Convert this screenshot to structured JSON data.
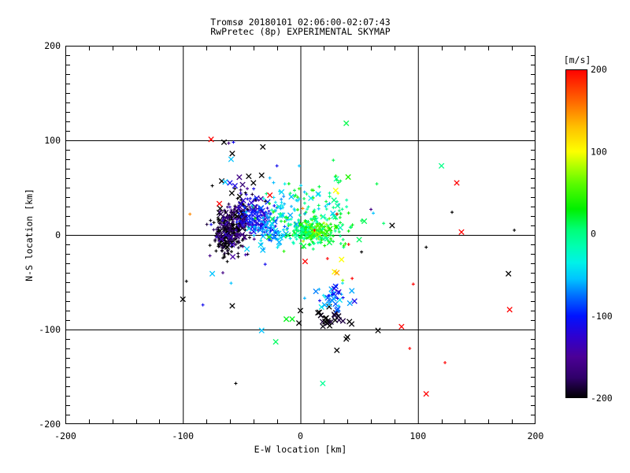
{
  "window": {
    "background": "#ffffff",
    "foreground": "#000000"
  },
  "chart_data": {
    "type": "scatter",
    "title": "Tromsø 20180101 02:06:00-02:07:43",
    "subtitle": "RwPretec (8p) EXPERIMENTAL SKYMAP",
    "xlabel": "E-W location [km]",
    "ylabel": "N-S location [km]",
    "xlim": [
      -200,
      200
    ],
    "ylim": [
      -200,
      200
    ],
    "x_major_ticks": [
      -200,
      -100,
      0,
      100,
      200
    ],
    "y_major_ticks": [
      -200,
      -100,
      0,
      100,
      200
    ],
    "x_minor_step": 20,
    "y_minor_step": 10,
    "grid_values": [
      -100,
      0,
      100
    ],
    "grid_on": true,
    "axis_color": "#000000",
    "marker_types": {
      "d": "small-plus-dot",
      "x": "large-x"
    },
    "colorbar": {
      "label": "[m/s]",
      "ticks": [
        200,
        100,
        0,
        -100,
        -200
      ],
      "min": -200,
      "max": 200,
      "position": "right",
      "stops": [
        [
          -200,
          "#000000"
        ],
        [
          -175,
          "#30006a"
        ],
        [
          -150,
          "#4b0096"
        ],
        [
          -125,
          "#2e00d0"
        ],
        [
          -100,
          "#0013ff"
        ],
        [
          -75,
          "#0070ff"
        ],
        [
          -55,
          "#00c4ff"
        ],
        [
          -35,
          "#00f2e8"
        ],
        [
          -15,
          "#00ffb0"
        ],
        [
          5,
          "#00ff78"
        ],
        [
          30,
          "#00f000"
        ],
        [
          60,
          "#58fb00"
        ],
        [
          80,
          "#a8ff00"
        ],
        [
          100,
          "#fdff00"
        ],
        [
          130,
          "#ffc000"
        ],
        [
          160,
          "#ff6a00"
        ],
        [
          200,
          "#ff0000"
        ]
      ]
    },
    "cluster_fields": [
      "n",
      "cx_km",
      "cy_km",
      "sx_km",
      "sy_km",
      "vmin_ms",
      "vmax_ms",
      "x_marker_fraction"
    ],
    "clusters": [
      [
        150,
        -60,
        5,
        7,
        10,
        -215,
        -175,
        0.15
      ],
      [
        70,
        -52,
        20,
        6,
        8,
        -215,
        -165,
        0.25
      ],
      [
        60,
        -63,
        -8,
        6,
        8,
        -215,
        -175,
        0.1
      ],
      [
        50,
        -56,
        6,
        10,
        14,
        -175,
        -125,
        0.2
      ],
      [
        110,
        -37,
        17,
        8,
        9,
        -135,
        -85,
        0.2
      ],
      [
        90,
        -24,
        8,
        9,
        10,
        -85,
        -40,
        0.2
      ],
      [
        170,
        7,
        3,
        9,
        6,
        -20,
        30,
        0.1
      ],
      [
        60,
        15,
        6,
        7,
        7,
        25,
        85,
        0.1
      ],
      [
        90,
        8,
        22,
        20,
        16,
        -25,
        45,
        0.15
      ],
      [
        35,
        -8,
        35,
        22,
        14,
        -70,
        -30,
        0.2
      ],
      [
        28,
        22,
        -88,
        8,
        6,
        -215,
        -180,
        0.9
      ],
      [
        26,
        26,
        -70,
        8,
        7,
        -90,
        -35,
        0.5
      ],
      [
        12,
        30,
        -60,
        6,
        5,
        -130,
        -90,
        0.4
      ],
      [
        25,
        35,
        8,
        12,
        12,
        -10,
        40,
        0.15
      ],
      [
        20,
        -45,
        40,
        12,
        10,
        -215,
        -100,
        0.5
      ]
    ],
    "point_fields": [
      "x_km",
      "y_km",
      "v_ms",
      "marker"
    ],
    "outlier_points": [
      [
        -76,
        101,
        215,
        "x"
      ],
      [
        -65,
        98,
        -200,
        "x"
      ],
      [
        -61,
        97,
        -160,
        "d"
      ],
      [
        -57,
        98,
        -110,
        "d"
      ],
      [
        -32,
        93,
        -200,
        "x"
      ],
      [
        39,
        118,
        15,
        "x"
      ],
      [
        -58,
        86,
        -200,
        "x"
      ],
      [
        -59,
        80,
        -55,
        "x"
      ],
      [
        -20,
        73,
        -110,
        "d"
      ],
      [
        -1,
        73,
        -55,
        "d"
      ],
      [
        28,
        79,
        15,
        "d"
      ],
      [
        -67,
        57,
        -200,
        "x"
      ],
      [
        -64,
        56,
        -55,
        "x"
      ],
      [
        -60,
        55,
        -110,
        "x"
      ],
      [
        -52,
        61,
        -160,
        "x"
      ],
      [
        -44,
        62,
        -200,
        "x"
      ],
      [
        -40,
        55,
        -200,
        "x"
      ],
      [
        -33,
        63,
        -200,
        "x"
      ],
      [
        -75,
        52,
        -200,
        "d"
      ],
      [
        -94,
        22,
        150,
        "d"
      ],
      [
        -76,
        11,
        -110,
        "d"
      ],
      [
        -77,
        -11,
        -200,
        "d"
      ],
      [
        -77,
        -22,
        -160,
        "d"
      ],
      [
        -69,
        33,
        215,
        "x"
      ],
      [
        -26,
        42,
        215,
        "x"
      ],
      [
        31,
        58,
        15,
        "d"
      ],
      [
        34,
        57,
        15,
        "d"
      ],
      [
        16,
        51,
        15,
        "d"
      ],
      [
        65,
        54,
        15,
        "d"
      ],
      [
        60,
        27,
        -160,
        "d"
      ],
      [
        62,
        23,
        -55,
        "d"
      ],
      [
        30,
        47,
        100,
        "x"
      ],
      [
        32,
        44,
        100,
        "d"
      ],
      [
        31,
        22,
        215,
        "d"
      ],
      [
        2,
        28,
        150,
        "d"
      ],
      [
        12,
        5,
        215,
        "d"
      ],
      [
        78,
        10,
        -200,
        "x"
      ],
      [
        107,
        -13,
        -200,
        "d"
      ],
      [
        120,
        73,
        0,
        "x"
      ],
      [
        133,
        55,
        215,
        "x"
      ],
      [
        129,
        24,
        -200,
        "d"
      ],
      [
        137,
        3,
        215,
        "x"
      ],
      [
        182,
        5,
        -200,
        "d"
      ],
      [
        96,
        -52,
        215,
        "d"
      ],
      [
        177,
        -41,
        -200,
        "x"
      ],
      [
        178,
        -79,
        215,
        "x"
      ],
      [
        50,
        -5,
        10,
        "x"
      ],
      [
        41,
        -10,
        215,
        "d"
      ],
      [
        52,
        -18,
        -200,
        "d"
      ],
      [
        23,
        -25,
        215,
        "d"
      ],
      [
        35,
        -26,
        100,
        "x"
      ],
      [
        29,
        -39,
        105,
        "x"
      ],
      [
        31,
        -40,
        140,
        "x"
      ],
      [
        44,
        -46,
        215,
        "d"
      ],
      [
        36,
        -48,
        75,
        "d"
      ],
      [
        4,
        -28,
        215,
        "x"
      ],
      [
        46,
        -70,
        -110,
        "x"
      ],
      [
        -32,
        -16,
        -55,
        "x"
      ],
      [
        -30,
        -31,
        -110,
        "d"
      ],
      [
        -66,
        -40,
        -160,
        "d"
      ],
      [
        -75,
        -41,
        -55,
        "x"
      ],
      [
        -59,
        -51,
        -55,
        "d"
      ],
      [
        -97,
        -49,
        -200,
        "d"
      ],
      [
        -100,
        -68,
        -200,
        "x"
      ],
      [
        -83,
        -74,
        -110,
        "d"
      ],
      [
        -58,
        -75,
        -200,
        "x"
      ],
      [
        0,
        -80,
        -200,
        "x"
      ],
      [
        -55,
        -157,
        -200,
        "d"
      ],
      [
        -33,
        -101,
        -55,
        "x"
      ],
      [
        -21,
        -113,
        10,
        "x"
      ],
      [
        -12,
        -89,
        25,
        "x"
      ],
      [
        -7,
        -89,
        25,
        "x"
      ],
      [
        19,
        -157,
        -5,
        "x"
      ],
      [
        66,
        -101,
        -200,
        "x"
      ],
      [
        40,
        -108,
        -200,
        "x"
      ],
      [
        31,
        -122,
        -200,
        "x"
      ],
      [
        39,
        -110,
        -200,
        "x"
      ],
      [
        86,
        -97,
        215,
        "x"
      ],
      [
        93,
        -120,
        215,
        "d"
      ],
      [
        123,
        -135,
        215,
        "d"
      ],
      [
        107,
        -168,
        215,
        "x"
      ]
    ],
    "seed": 42,
    "layout": {
      "plot_left": 83,
      "plot_right": 680,
      "plot_top": 58,
      "plot_bottom": 538,
      "colorbar_left": 718,
      "colorbar_width": 28,
      "colorbar_top": 88,
      "colorbar_bottom": 505
    }
  }
}
